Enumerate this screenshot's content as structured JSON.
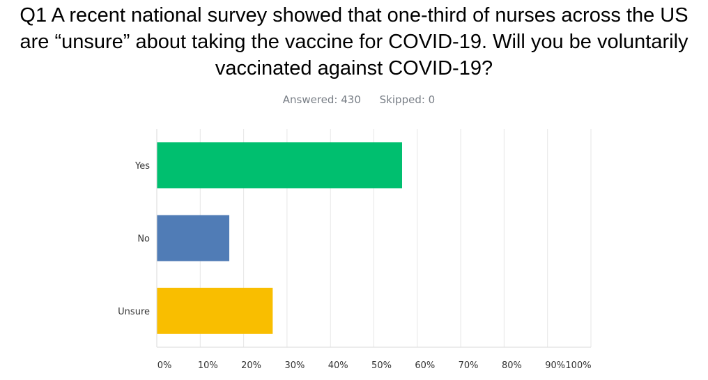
{
  "question": {
    "title": "Q1 A recent national survey showed that one-third of nurses across the US are “unsure” about taking the vaccine for COVID-19. Will you be voluntarily vaccinated against COVID-19?",
    "answered": "Answered: 430",
    "skipped": "Skipped: 0"
  },
  "chart_data": {
    "type": "bar",
    "orientation": "horizontal",
    "categories": [
      "Yes",
      "No",
      "Unsure"
    ],
    "values": [
      56.5,
      16.7,
      26.7
    ],
    "colors": [
      "#00bf6f",
      "#507cb6",
      "#f9be00"
    ],
    "xlim": [
      0,
      100
    ],
    "unit": "%",
    "tick_labels": [
      "0%",
      "10%",
      "20%",
      "30%",
      "40%",
      "50%",
      "60%",
      "70%",
      "80%",
      "90%",
      "100%"
    ],
    "grid": true,
    "legend": "none",
    "title": "",
    "xlabel": "",
    "ylabel": ""
  }
}
